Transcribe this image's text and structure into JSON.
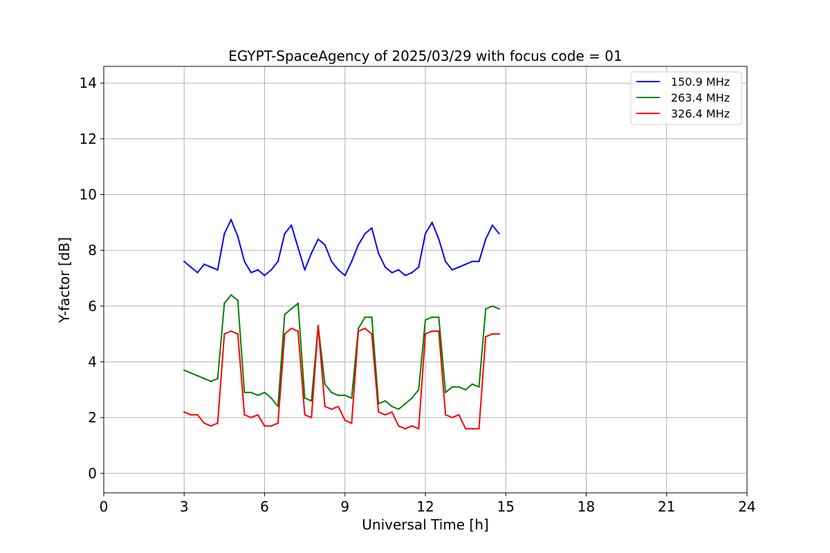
{
  "chart_data": {
    "type": "line",
    "title": "EGYPT-SpaceAgency of 2025/03/29 with focus code = 01",
    "xlabel": "Universal Time [h]",
    "ylabel": "Y-factor [dB]",
    "xlim": [
      0,
      24
    ],
    "ylim": [
      -0.7,
      14.6
    ],
    "xticks": [
      "0",
      "3",
      "6",
      "9",
      "12",
      "15",
      "18",
      "21",
      "24"
    ],
    "yticks": [
      "0",
      "2",
      "4",
      "6",
      "8",
      "10",
      "12",
      "14"
    ],
    "grid": true,
    "legend_position": "top-right",
    "series": [
      {
        "name": "150.9 MHz",
        "color": "#0000ff",
        "x": [
          3.0,
          3.25,
          3.5,
          3.75,
          4.0,
          4.25,
          4.5,
          4.75,
          5.0,
          5.25,
          5.5,
          5.75,
          6.0,
          6.25,
          6.5,
          6.75,
          7.0,
          7.25,
          7.5,
          7.75,
          8.0,
          8.25,
          8.5,
          8.75,
          9.0,
          9.25,
          9.5,
          9.75,
          10.0,
          10.25,
          10.5,
          10.75,
          11.0,
          11.25,
          11.5,
          11.75,
          12.0,
          12.25,
          12.5,
          12.75,
          13.0,
          13.25,
          13.5,
          13.75,
          14.0,
          14.25,
          14.5,
          14.75
        ],
        "values": [
          7.6,
          7.4,
          7.2,
          7.5,
          7.4,
          7.3,
          8.6,
          9.1,
          8.5,
          7.6,
          7.2,
          7.3,
          7.1,
          7.3,
          7.6,
          8.6,
          8.9,
          8.1,
          7.3,
          7.9,
          8.4,
          8.2,
          7.6,
          7.3,
          7.1,
          7.6,
          8.2,
          8.6,
          8.8,
          7.9,
          7.4,
          7.2,
          7.3,
          7.1,
          7.2,
          7.4,
          8.6,
          9.0,
          8.4,
          7.6,
          7.3,
          7.4,
          7.5,
          7.6,
          7.6,
          8.4,
          8.9,
          8.6
        ]
      },
      {
        "name": "263.4 MHz",
        "color": "#008000",
        "x": [
          3.0,
          3.25,
          3.5,
          3.75,
          4.0,
          4.25,
          4.5,
          4.75,
          5.0,
          5.25,
          5.5,
          5.75,
          6.0,
          6.25,
          6.5,
          6.75,
          7.0,
          7.25,
          7.5,
          7.75,
          8.0,
          8.25,
          8.5,
          8.75,
          9.0,
          9.25,
          9.5,
          9.75,
          10.0,
          10.25,
          10.5,
          10.75,
          11.0,
          11.25,
          11.5,
          11.75,
          12.0,
          12.25,
          12.5,
          12.75,
          13.0,
          13.25,
          13.5,
          13.75,
          14.0,
          14.25,
          14.5,
          14.75
        ],
        "values": [
          3.7,
          3.6,
          3.5,
          3.4,
          3.3,
          3.4,
          6.1,
          6.4,
          6.2,
          2.9,
          2.9,
          2.8,
          2.9,
          2.7,
          2.4,
          5.7,
          5.9,
          6.1,
          2.7,
          2.6,
          5.3,
          3.2,
          2.9,
          2.8,
          2.8,
          2.7,
          5.2,
          5.6,
          5.6,
          2.5,
          2.6,
          2.4,
          2.3,
          2.5,
          2.7,
          3.0,
          5.5,
          5.6,
          5.6,
          2.9,
          3.1,
          3.1,
          3.0,
          3.2,
          3.1,
          5.9,
          6.0,
          5.9
        ]
      },
      {
        "name": "326.4 MHz",
        "color": "#ff0000",
        "x": [
          3.0,
          3.25,
          3.5,
          3.75,
          4.0,
          4.25,
          4.5,
          4.75,
          5.0,
          5.25,
          5.5,
          5.75,
          6.0,
          6.25,
          6.5,
          6.75,
          7.0,
          7.25,
          7.5,
          7.75,
          8.0,
          8.25,
          8.5,
          8.75,
          9.0,
          9.25,
          9.5,
          9.75,
          10.0,
          10.25,
          10.5,
          10.75,
          11.0,
          11.25,
          11.5,
          11.75,
          12.0,
          12.25,
          12.5,
          12.75,
          13.0,
          13.25,
          13.5,
          13.75,
          14.0,
          14.25,
          14.5,
          14.75
        ],
        "values": [
          2.2,
          2.1,
          2.1,
          1.8,
          1.7,
          1.8,
          5.0,
          5.1,
          5.0,
          2.1,
          2.0,
          2.1,
          1.7,
          1.7,
          1.8,
          5.0,
          5.2,
          5.1,
          2.1,
          2.0,
          5.3,
          2.4,
          2.3,
          2.4,
          1.9,
          1.8,
          5.1,
          5.2,
          5.0,
          2.2,
          2.1,
          2.2,
          1.7,
          1.6,
          1.7,
          1.6,
          5.0,
          5.1,
          5.1,
          2.1,
          2.0,
          2.1,
          1.6,
          1.6,
          1.6,
          4.9,
          5.0,
          5.0
        ]
      }
    ]
  }
}
